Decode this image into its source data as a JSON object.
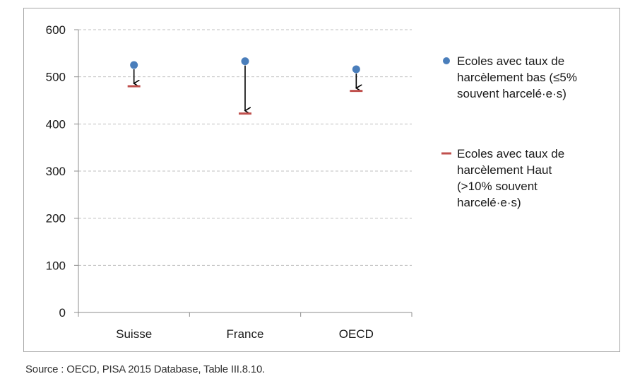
{
  "chart_data": {
    "type": "scatter",
    "categories": [
      "Suisse",
      "France",
      "OECD"
    ],
    "series": [
      {
        "name": "Ecoles avec taux de harcèlement bas (≤5% souvent harcelé·e·s)",
        "legend_lines": [
          "Ecoles avec taux de",
          "harcèlement bas (≤5%",
          "souvent harcelé·e·s)"
        ],
        "marker": "circle",
        "color": "#4a7ebb",
        "values": [
          525,
          533,
          516
        ]
      },
      {
        "name": "Ecoles avec taux de harcèlement Haut (>10% souvent harcelé·e·s)",
        "legend_lines": [
          "Ecoles avec taux de",
          "harcèlement Haut",
          "(>10% souvent",
          "harcelé·e·s)"
        ],
        "marker": "dash",
        "color": "#c0504d",
        "values": [
          480,
          422,
          470
        ]
      }
    ],
    "arrows": "from low-bullying value down to high-bullying value",
    "arrow_color": "#000000",
    "ylim": [
      0,
      600
    ],
    "yticks": [
      "0",
      "100",
      "200",
      "300",
      "400",
      "500",
      "600"
    ],
    "ytick_values": [
      0,
      100,
      200,
      300,
      400,
      500,
      600
    ],
    "grid": "horizontal dashed",
    "grid_color": "#bfbfbf",
    "legend_position": "right",
    "title": "",
    "xlabel": "",
    "ylabel": ""
  },
  "source": "Source : OECD, PISA 2015 Database, Table III.8.10."
}
